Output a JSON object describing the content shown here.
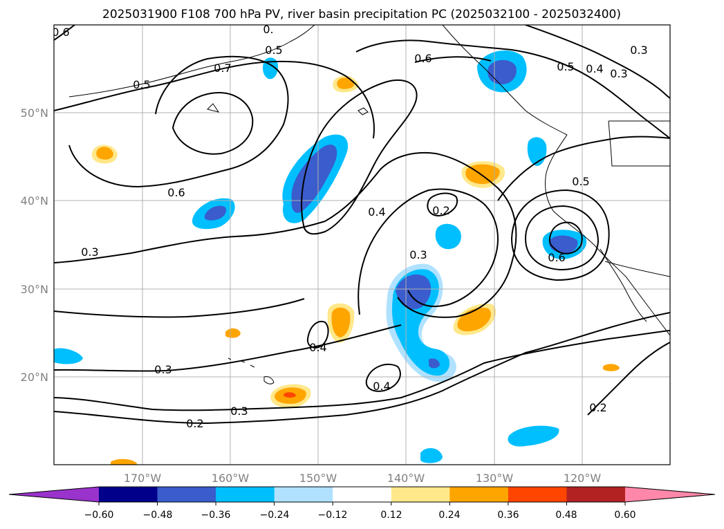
{
  "title": "2025031900 F108 700 hPa PV, river basin precipitation PC (2025032100 - 2025032400)",
  "longitude_labels": [
    "170°W",
    "160°W",
    "150°W",
    "140°W",
    "130°W",
    "120°W"
  ],
  "latitude_labels": [
    "50°N",
    "40°N",
    "30°N",
    "20°N"
  ],
  "colorbar": {
    "tick_labels": [
      "−0.60",
      "−0.48",
      "−0.36",
      "−0.24",
      "−0.12",
      "0.12",
      "0.24",
      "0.36",
      "0.48",
      "0.60"
    ],
    "colors": [
      "#9933cc",
      "#00008b",
      "#3a5ccc",
      "#00bfff",
      "#b0e2ff",
      "#ffffff",
      "#ffe88a",
      "#ffa500",
      "#ff4500",
      "#b22222",
      "#ff88aa"
    ]
  },
  "contour_labels": [
    "0.6",
    "0.",
    "0.5",
    "0.7",
    "0.5",
    "0.6",
    "0.5",
    "0.4",
    "0.3",
    "0.3",
    "0.6",
    "0.5",
    "0.4",
    "0.2",
    "0.3",
    "0.6",
    "0.3",
    "0.4",
    "0.3",
    "0.4",
    "0.3",
    "0.2",
    "0.2"
  ],
  "map": {
    "extent": {
      "lon_min": -180,
      "lon_max": -110,
      "lat_min": 10,
      "lat_max": 60
    },
    "grid_spacing_deg": 10,
    "shading_colors": {
      "dark_blue": "#3a5ccc",
      "blue": "#00bfff",
      "light_blue": "#b0e2ff",
      "yellow": "#ffe88a",
      "orange": "#ffa500",
      "red_orange": "#ff4500"
    }
  }
}
